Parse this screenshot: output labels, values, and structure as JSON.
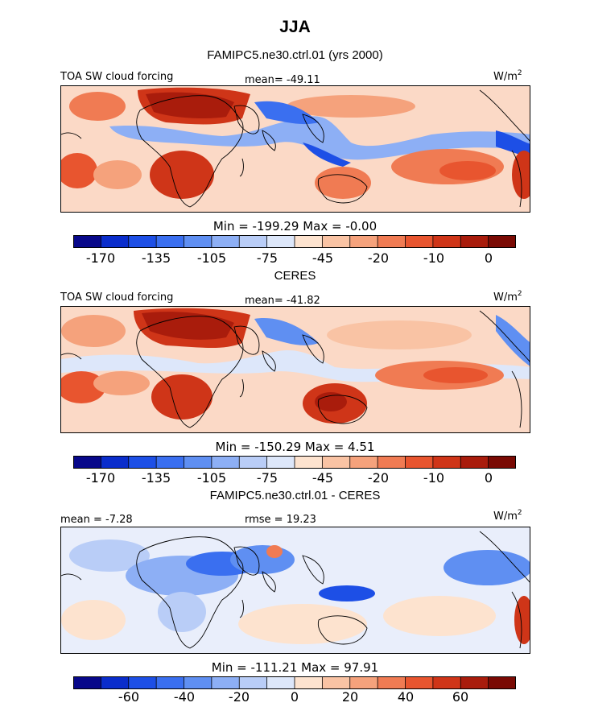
{
  "chart_data": [
    {
      "type": "heatmap",
      "season": "JJA",
      "title": "FAMIPC5.ne30.ctrl.01 (yrs 2000)",
      "variable": "TOA SW cloud forcing",
      "units": "W/m",
      "units_exp": "2",
      "mean_text": "mean= -49.11",
      "minmax_text": "Min = -199.29 Max = -0.00",
      "min": -199.29,
      "max": -0.0,
      "colorbar_ticks": [
        "-170",
        "-135",
        "-105",
        "-75",
        "-45",
        "-20",
        "-10",
        "0"
      ]
    },
    {
      "type": "heatmap",
      "title": "CERES",
      "variable": "TOA SW cloud forcing",
      "units": "W/m",
      "units_exp": "2",
      "mean_text": "mean= -41.82",
      "minmax_text": "Min = -150.29 Max = 4.51",
      "min": -150.29,
      "max": 4.51,
      "colorbar_ticks": [
        "-170",
        "-135",
        "-105",
        "-75",
        "-45",
        "-20",
        "-10",
        "0"
      ]
    },
    {
      "type": "heatmap",
      "title": "FAMIPC5.ne30.ctrl.01 - CERES",
      "mean_text": "mean = -7.28",
      "rmse_text": "rmse = 19.23",
      "units": "W/m",
      "units_exp": "2",
      "minmax_text": "Min = -111.21 Max = 97.91",
      "min": -111.21,
      "max": 97.91,
      "colorbar_ticks": [
        "-60",
        "-40",
        "-20",
        "0",
        "20",
        "40",
        "60"
      ]
    }
  ],
  "colors": {
    "ramp": [
      "#08088a",
      "#0a2dcc",
      "#1d4fe6",
      "#3a6ff0",
      "#5f8ff2",
      "#8daff5",
      "#b9cdf7",
      "#dde7fa",
      "#fde3cf",
      "#f9c3a4",
      "#f5a27c",
      "#f07b53",
      "#e8552f",
      "#cf3518",
      "#a91c0c",
      "#7a0a04"
    ]
  }
}
